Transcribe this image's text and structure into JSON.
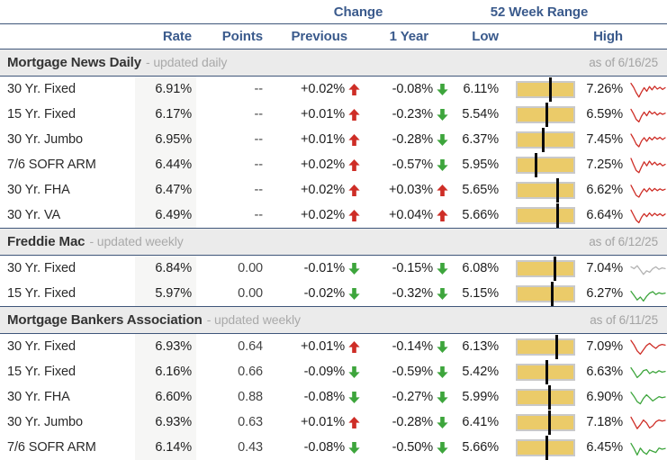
{
  "colors": {
    "navy": "#3a5a8c",
    "rule_line": "#3f567a",
    "red": "#ce2d26",
    "green": "#3da53c",
    "gray": "#b3b3b3",
    "bar_fill": "#ebcb69",
    "bar_border": "#c9c9c9",
    "marker": "#0b0b0b",
    "section_bg": "#ebebeb",
    "rate_column_bg": "#f6f6f5",
    "muted_text": "#a9a9a9"
  },
  "header": {
    "group_change": "Change",
    "group_range": "52 Week Range",
    "columns": [
      "Rate",
      "Points",
      "Previous",
      "1 Year",
      "Low",
      "High"
    ]
  },
  "sections": [
    {
      "title": "Mortgage News Daily",
      "subtitle": "- updated daily",
      "as_of": "as of 6/16/25",
      "rows": [
        {
          "label": "30 Yr. Fixed",
          "rate": "6.91%",
          "points": "--",
          "previous": "+0.02%",
          "one_year": "-0.08%",
          "low": "6.11%",
          "high": "7.26%",
          "spark": {
            "color": "red",
            "points": [
              82,
              60,
              30,
              6,
              34,
              58,
              38,
              64,
              46,
              66,
              50,
              60,
              48,
              58
            ]
          }
        },
        {
          "label": "15 Yr. Fixed",
          "rate": "6.17%",
          "points": "--",
          "previous": "+0.01%",
          "one_year": "-0.23%",
          "low": "5.54%",
          "high": "6.59%",
          "spark": {
            "color": "red",
            "points": [
              78,
              52,
              22,
              8,
              40,
              62,
              42,
              68,
              52,
              62,
              46,
              58,
              50,
              56
            ]
          }
        },
        {
          "label": "30 Yr. Jumbo",
          "rate": "6.95%",
          "points": "--",
          "previous": "+0.01%",
          "one_year": "-0.28%",
          "low": "6.37%",
          "high": "7.45%",
          "spark": {
            "color": "red",
            "points": [
              80,
              55,
              25,
              10,
              42,
              60,
              40,
              62,
              48,
              64,
              52,
              62,
              50,
              60
            ]
          }
        },
        {
          "label": "7/6 SOFR ARM",
          "rate": "6.44%",
          "points": "--",
          "previous": "+0.02%",
          "one_year": "-0.57%",
          "low": "5.95%",
          "high": "7.25%",
          "spark": {
            "color": "red",
            "points": [
              85,
              50,
              18,
              6,
              38,
              66,
              44,
              70,
              50,
              64,
              48,
              58,
              44,
              52
            ]
          }
        },
        {
          "label": "30 Yr. FHA",
          "rate": "6.47%",
          "points": "--",
          "previous": "+0.02%",
          "one_year": "+0.03%",
          "low": "5.65%",
          "high": "6.62%",
          "spark": {
            "color": "red",
            "points": [
              76,
              48,
              20,
              10,
              36,
              56,
              40,
              60,
              44,
              58,
              46,
              56,
              48,
              54
            ]
          }
        },
        {
          "label": "30 Yr. VA",
          "rate": "6.49%",
          "points": "--",
          "previous": "+0.02%",
          "one_year": "+0.04%",
          "low": "5.66%",
          "high": "6.64%",
          "spark": {
            "color": "red",
            "points": [
              78,
              50,
              22,
              8,
              38,
              58,
              42,
              62,
              46,
              60,
              48,
              58,
              46,
              56
            ]
          }
        }
      ]
    },
    {
      "title": "Freddie Mac",
      "subtitle": "- updated weekly",
      "as_of": "as of 6/12/25",
      "rows": [
        {
          "label": "30 Yr. Fixed",
          "rate": "6.84%",
          "points": "0.00",
          "previous": "-0.01%",
          "one_year": "-0.15%",
          "low": "6.08%",
          "high": "7.04%",
          "spark": {
            "color": "gray",
            "points": [
              58,
              48,
              64,
              40,
              16,
              36,
              28,
              48,
              58,
              44,
              52,
              48
            ]
          }
        },
        {
          "label": "15 Yr. Fixed",
          "rate": "5.97%",
          "points": "0.00",
          "previous": "-0.02%",
          "one_year": "-0.32%",
          "low": "5.15%",
          "high": "6.27%",
          "spark": {
            "color": "green",
            "points": [
              62,
              38,
              14,
              30,
              8,
              34,
              52,
              60,
              44,
              54,
              48,
              52
            ]
          }
        }
      ]
    },
    {
      "title": "Mortgage Bankers Association",
      "subtitle": "- updated weekly",
      "as_of": "as of 6/11/25",
      "rows": [
        {
          "label": "30 Yr. Fixed",
          "rate": "6.93%",
          "points": "0.64",
          "previous": "+0.01%",
          "one_year": "-0.14%",
          "low": "6.13%",
          "high": "7.09%",
          "spark": {
            "color": "red",
            "points": [
              84,
              58,
              26,
              8,
              32,
              56,
              68,
              52,
              40,
              56,
              62,
              58
            ]
          }
        },
        {
          "label": "15 Yr. Fixed",
          "rate": "6.16%",
          "points": "0.66",
          "previous": "-0.09%",
          "one_year": "-0.59%",
          "low": "5.42%",
          "high": "6.63%",
          "spark": {
            "color": "green",
            "points": [
              72,
              46,
              18,
              34,
              56,
              62,
              40,
              52,
              44,
              56,
              48,
              52
            ]
          }
        },
        {
          "label": "30 Yr. FHA",
          "rate": "6.60%",
          "points": "0.88",
          "previous": "-0.08%",
          "one_year": "-0.27%",
          "low": "5.99%",
          "high": "6.90%",
          "spark": {
            "color": "green",
            "points": [
              76,
              52,
              24,
              12,
              42,
              62,
              46,
              28,
              40,
              52,
              46,
              50
            ]
          }
        },
        {
          "label": "30 Yr. Jumbo",
          "rate": "6.93%",
          "points": "0.63",
          "previous": "+0.01%",
          "one_year": "-0.28%",
          "low": "6.41%",
          "high": "7.18%",
          "spark": {
            "color": "red",
            "points": [
              78,
              46,
              14,
              36,
              62,
              46,
              18,
              30,
              52,
              62,
              56,
              60
            ]
          }
        },
        {
          "label": "7/6 SOFR ARM",
          "rate": "6.14%",
          "points": "0.43",
          "previous": "-0.08%",
          "one_year": "-0.50%",
          "low": "5.66%",
          "high": "6.45%",
          "spark": {
            "color": "green",
            "points": [
              72,
              42,
              8,
              46,
              24,
              12,
              36,
              28,
              22,
              46,
              40,
              44
            ]
          }
        }
      ]
    }
  ]
}
